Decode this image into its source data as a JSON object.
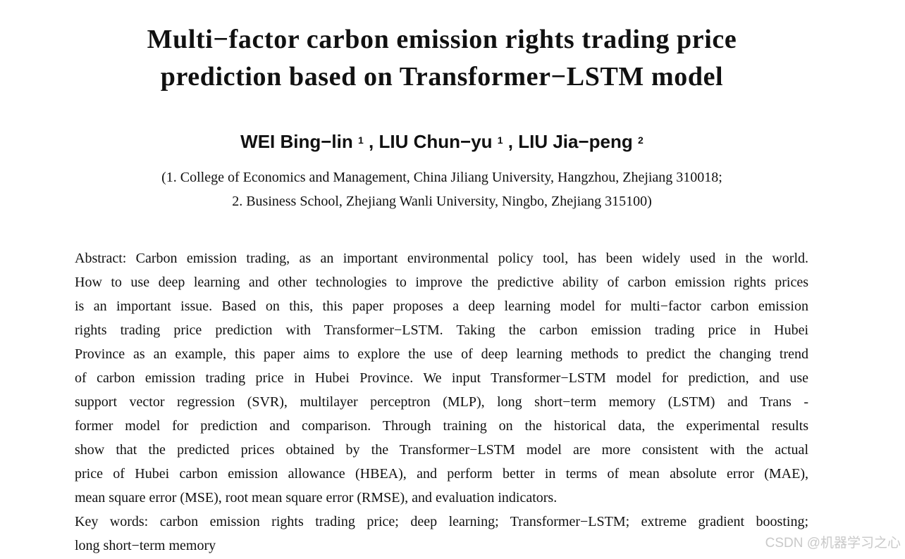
{
  "title": {
    "line1": "Multi−factor carbon emission rights trading price",
    "line2": "prediction based on Transformer−LSTM model"
  },
  "authors": {
    "a1_name": "WEI Bing−lin",
    "a1_mark": "1",
    "a2_name": ", LIU Chun−yu",
    "a2_mark": "1",
    "a3_name": ", LIU Jia−peng",
    "a3_mark": "2"
  },
  "affiliations": {
    "line1": "(1. College of Economics and Management, China Jiliang University, Hangzhou, Zhejiang 310018;",
    "line2": "2. Business School, Zhejiang Wanli University, Ningbo, Zhejiang 315100)"
  },
  "abstract": {
    "lines": [
      "Abstract: Carbon emission trading, as an important environmental policy tool, has been widely used in the world.",
      "How to use deep learning and other technologies to improve the predictive ability of carbon emission rights prices",
      "is an important issue. Based on this, this paper proposes a deep learning model for multi−factor carbon emission",
      "rights trading price prediction with Transformer−LSTM. Taking the carbon emission trading price in Hubei",
      "Province as an example, this paper aims to explore the use of deep learning methods to predict the changing trend",
      "of carbon emission trading price in Hubei Province. We input Transformer−LSTM model for prediction, and use",
      "support vector regression (SVR), multilayer perceptron (MLP), long short−term memory (LSTM) and Trans -",
      "former model for prediction and comparison. Through training on the historical data, the experimental results",
      "show that the predicted prices obtained by the Transformer−LSTM model are more consistent with the actual",
      "price of Hubei carbon emission allowance (HBEA), and perform better in terms of mean absolute error (MAE),",
      "mean square error (MSE), root mean square error (RMSE), and evaluation indicators."
    ]
  },
  "keywords": {
    "lines": [
      "Key words: carbon emission rights trading price; deep learning; Transformer−LSTM; extreme gradient boosting;",
      "long short−term memory"
    ]
  },
  "watermark": "CSDN @机器学习之心"
}
